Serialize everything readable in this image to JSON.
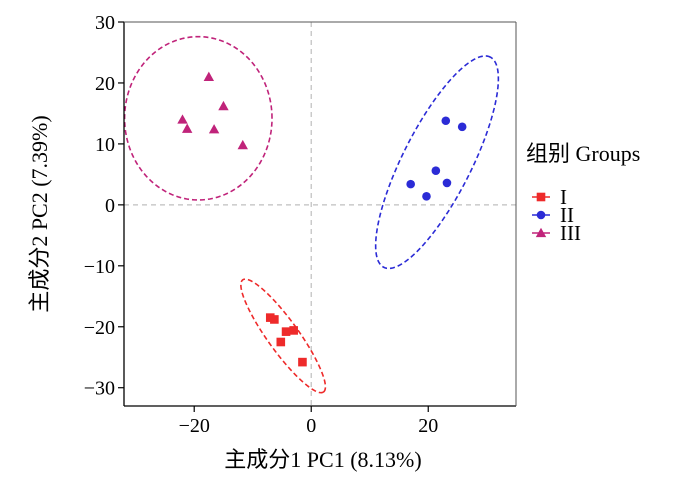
{
  "chart_data": {
    "type": "scatter",
    "xlabel": "主成分1 PC1 (8.13%)",
    "ylabel": "主成分2 PC2 (7.39%)",
    "xlim": [
      -32,
      35
    ],
    "ylim": [
      -33,
      30
    ],
    "xticks": [
      -20,
      0,
      20
    ],
    "yticks": [
      -30,
      -20,
      -10,
      0,
      10,
      20,
      30
    ],
    "xtick_labels": [
      "−20",
      "0",
      "20"
    ],
    "ytick_labels": [
      "−30",
      "−20",
      "−10",
      "0",
      "10",
      "20",
      "30"
    ],
    "grid": false,
    "reference_lines": {
      "x": 0,
      "y": 0,
      "style": "dashed",
      "color": "#bfbfbf"
    },
    "legend": {
      "title": "组别 Groups",
      "placement": "right"
    },
    "series": [
      {
        "name": "I",
        "color": "#ee2a2a",
        "marker": "square",
        "points": [
          [
            -7,
            -18.5
          ],
          [
            -6.3,
            -18.8
          ],
          [
            -4.3,
            -20.8
          ],
          [
            -3,
            -20.6
          ],
          [
            -5.2,
            -22.5
          ],
          [
            -1.5,
            -25.8
          ]
        ],
        "ellipse": {
          "center": [
            -4.8,
            -21.5
          ],
          "semi_axes": [
            11.5,
            2.6
          ],
          "angle_deg": -53
        }
      },
      {
        "name": "II",
        "color": "#2b2bd6",
        "marker": "circle",
        "points": [
          [
            17,
            3.4
          ],
          [
            19.7,
            1.4
          ],
          [
            21.3,
            5.6
          ],
          [
            23,
            13.8
          ],
          [
            23.2,
            3.6
          ],
          [
            25.8,
            12.8
          ]
        ],
        "ellipse": {
          "center": [
            21.5,
            7
          ],
          "semi_axes": [
            19.5,
            5.8
          ],
          "angle_deg": 62
        }
      },
      {
        "name": "III",
        "color": "#c0237a",
        "marker": "triangle",
        "points": [
          [
            -17.5,
            21
          ],
          [
            -15,
            16.2
          ],
          [
            -22,
            14
          ],
          [
            -21.2,
            12.5
          ],
          [
            -16.6,
            12.4
          ],
          [
            -11.7,
            9.8
          ]
        ],
        "ellipse": {
          "center": [
            -19.3,
            14.2
          ],
          "semi_axes": [
            12.6,
            13.4
          ],
          "angle_deg": 0
        }
      }
    ]
  }
}
